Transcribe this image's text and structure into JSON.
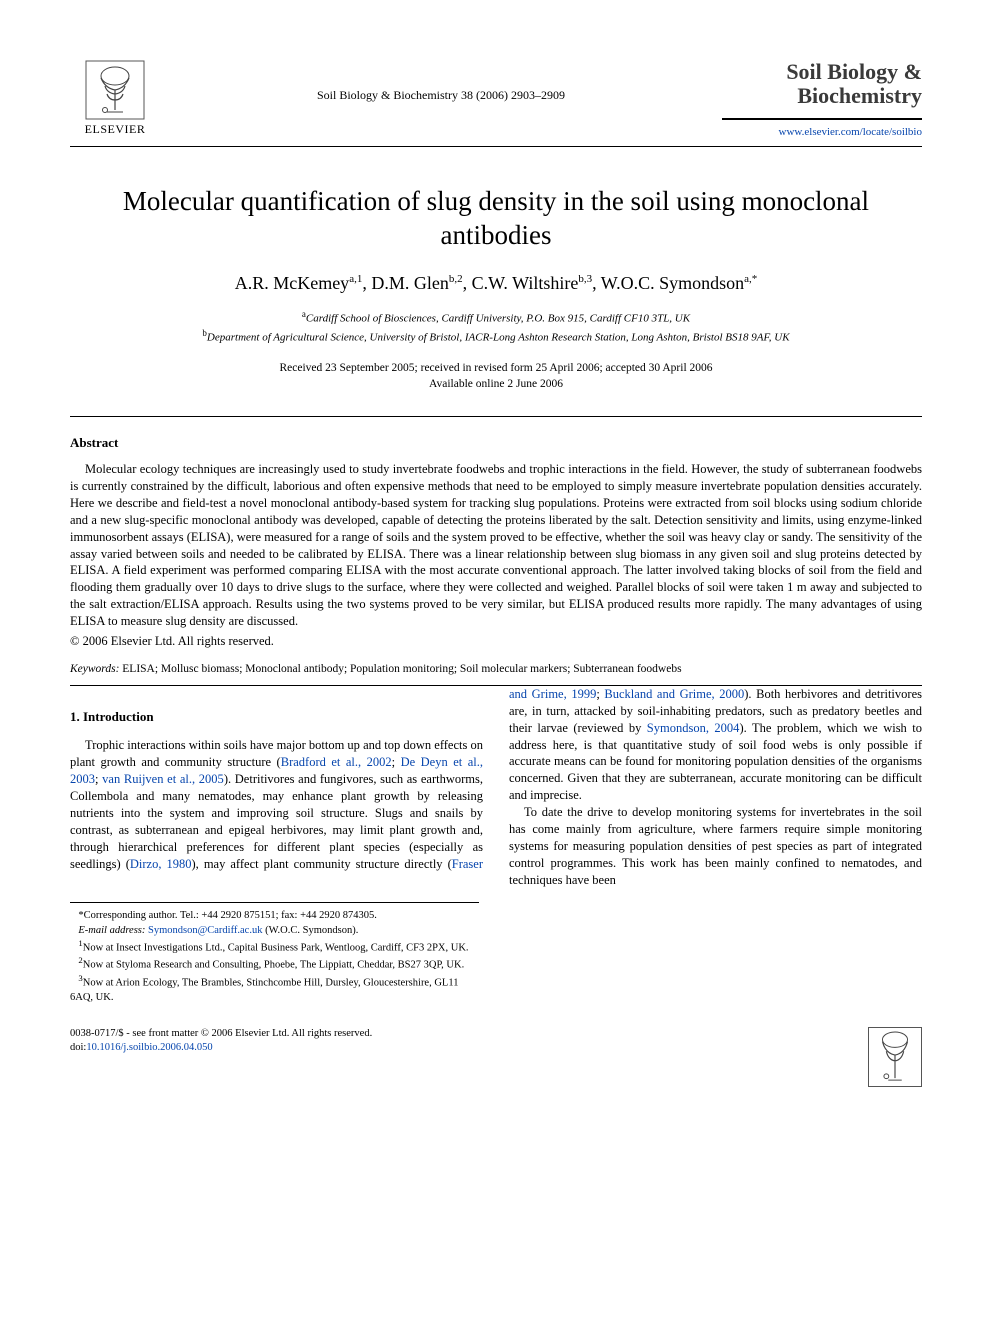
{
  "header": {
    "publisher_name": "ELSEVIER",
    "journal_ref": "Soil Biology & Biochemistry 38 (2006) 2903–2909",
    "journal_title_line1": "Soil Biology &",
    "journal_title_line2": "Biochemistry",
    "journal_link": "www.elsevier.com/locate/soilbio"
  },
  "article": {
    "title": "Molecular quantification of slug density in the soil using monoclonal antibodies",
    "authors_html": "A.R. McKemey<sup>a,1</sup>, D.M. Glen<sup>b,2</sup>, C.W. Wiltshire<sup>b,3</sup>, W.O.C. Symondson<sup>a,*</sup>",
    "affil_a": "Cardiff School of Biosciences, Cardiff University, P.O. Box 915, Cardiff CF10 3TL, UK",
    "affil_b": "Department of Agricultural Science, University of Bristol, IACR-Long Ashton Research Station, Long Ashton, Bristol BS18 9AF, UK",
    "dates_line1": "Received 23 September 2005; received in revised form 25 April 2006; accepted 30 April 2006",
    "dates_line2": "Available online 2 June 2006"
  },
  "abstract": {
    "heading": "Abstract",
    "body": "Molecular ecology techniques are increasingly used to study invertebrate foodwebs and trophic interactions in the field. However, the study of subterranean foodwebs is currently constrained by the difficult, laborious and often expensive methods that need to be employed to simply measure invertebrate population densities accurately. Here we describe and field-test a novel monoclonal antibody-based system for tracking slug populations. Proteins were extracted from soil blocks using sodium chloride and a new slug-specific monoclonal antibody was developed, capable of detecting the proteins liberated by the salt. Detection sensitivity and limits, using enzyme-linked immunosorbent assays (ELISA), were measured for a range of soils and the system proved to be effective, whether the soil was heavy clay or sandy. The sensitivity of the assay varied between soils and needed to be calibrated by ELISA. There was a linear relationship between slug biomass in any given soil and slug proteins detected by ELISA. A field experiment was performed comparing ELISA with the most accurate conventional approach. The latter involved taking blocks of soil from the field and flooding them gradually over 10 days to drive slugs to the surface, where they were collected and weighed. Parallel blocks of soil were taken 1 m away and subjected to the salt extraction/ELISA approach. Results using the two systems proved to be very similar, but ELISA produced results more rapidly. The many advantages of using ELISA to measure slug density are discussed.",
    "copyright": "© 2006 Elsevier Ltd. All rights reserved."
  },
  "keywords": {
    "label": "Keywords:",
    "text": " ELISA; Mollusc biomass; Monoclonal antibody; Population monitoring; Soil molecular markers; Subterranean foodwebs"
  },
  "intro": {
    "heading": "1. Introduction",
    "p1_pre": "Trophic interactions within soils have major bottom up and top down effects on plant growth and community structure (",
    "p1_ref1": "Bradford et al., 2002",
    "p1_sep1": "; ",
    "p1_ref2": "De Deyn et al., 2003",
    "p1_sep2": "; ",
    "p1_ref3": "van Ruijven et al., 2005",
    "p1_post1": "). Detritivores and fungivores, such as earthworms, Collembola and many nematodes, may enhance plant growth by releasing nutrients into the system and improving soil structure. Slugs and snails by contrast, as subterranean and epigeal herbivores, may limit plant growth and, through hierarchical preferences for different plant species (especially as seedlings) (",
    "p1_ref4": "Dirzo, 1980",
    "p1_post2": "), may affect plant community structure directly (",
    "p1_ref5": "Fraser and Grime, 1999",
    "p1_sep3": "; ",
    "p1_ref6": "Buckland and Grime, 2000",
    "p1_post3": "). Both herbivores and detritivores are, in turn, attacked by soil-inhabiting predators, such as predatory beetles and their larvae (reviewed by ",
    "p1_ref7": "Symondson, 2004",
    "p1_post4": "). The problem, which we wish to address here, is that quantitative study of soil food webs is only possible if accurate means can be found for monitoring population densities of the organisms concerned. Given that they are subterranean, accurate monitoring can be difficult and imprecise.",
    "p2": "To date the drive to develop monitoring systems for invertebrates in the soil has come mainly from agriculture, where farmers require simple monitoring systems for measuring population densities of pest species as part of integrated control programmes. This work has been mainly confined to nematodes, and techniques have been"
  },
  "footnotes": {
    "corr": "*Corresponding author. Tel.: +44 2920 875151; fax: +44 2920 874305.",
    "email_label": "E-mail address:",
    "email": " Symondson@Cardiff.ac.uk",
    "email_post": " (W.O.C. Symondson).",
    "n1": "Now at Insect Investigations Ltd., Capital Business Park, Wentloog, Cardiff, CF3 2PX, UK.",
    "n2": "Now at Styloma Research and Consulting, Phoebe, The Lippiatt, Cheddar, BS27 3QP, UK.",
    "n3": "Now at Arion Ecology, The Brambles, Stinchcombe Hill, Dursley, Gloucestershire, GL11 6AQ, UK."
  },
  "footer": {
    "line1": "0038-0717/$ - see front matter © 2006 Elsevier Ltd. All rights reserved.",
    "doi_label": "doi:",
    "doi": "10.1016/j.soilbio.2006.04.050"
  },
  "colors": {
    "link": "#0645ad",
    "text": "#000000",
    "bg": "#ffffff"
  }
}
